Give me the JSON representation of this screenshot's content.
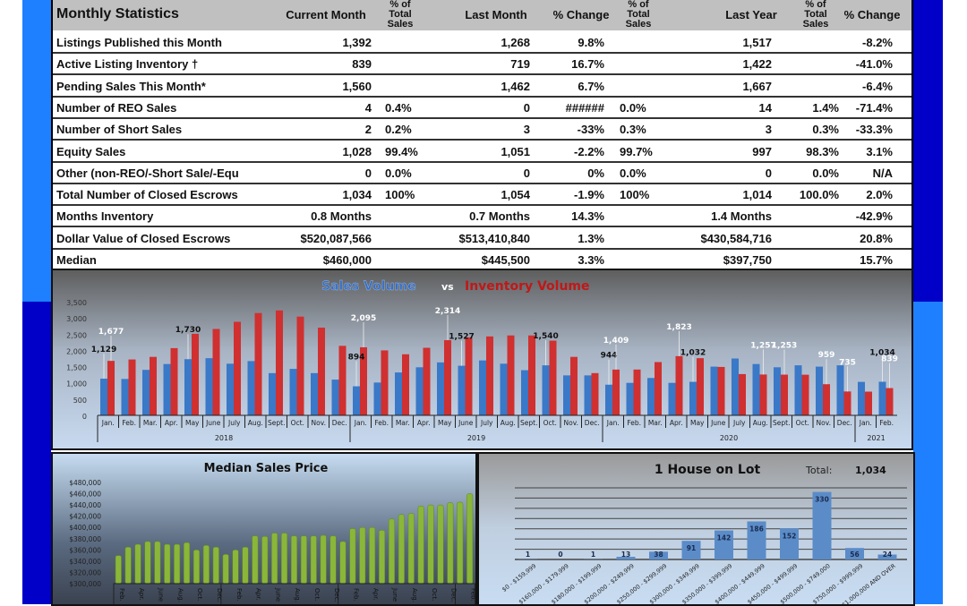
{
  "colors": {
    "frame_light": "#1e80ff",
    "frame_dark": "#0000c8",
    "sales": "#3a78c8",
    "inventory": "#d03030",
    "median_bar": "#8ab63a",
    "lot_bar": "#5b8cc8"
  },
  "table": {
    "headers": [
      "Monthly Statistics",
      "Current Month",
      "% of Total Sales",
      "Last Month",
      "% Change",
      "% of Total Sales",
      "Last Year",
      "% of Total Sales",
      "% Change"
    ],
    "rows": [
      [
        "Listings Published this Month",
        "1,392",
        "",
        "1,268",
        "9.8%",
        "",
        "1,517",
        "",
        "-8.2%"
      ],
      [
        "Active Listing Inventory †",
        "839",
        "",
        "719",
        "16.7%",
        "",
        "1,422",
        "",
        "-41.0%"
      ],
      [
        "Pending Sales This Month*",
        "1,560",
        "",
        "1,462",
        "6.7%",
        "",
        "1,667",
        "",
        "-6.4%"
      ],
      [
        "Number of REO Sales",
        "4",
        "0.4%",
        "0",
        "######",
        "0.0%",
        "14",
        "1.4%",
        "-71.4%"
      ],
      [
        "Number of Short Sales",
        "2",
        "0.2%",
        "3",
        "-33%",
        "0.3%",
        "3",
        "0.3%",
        "-33.3%"
      ],
      [
        "Equity Sales",
        "1,028",
        "99.4%",
        "1,051",
        "-2.2%",
        "99.7%",
        "997",
        "98.3%",
        "3.1%"
      ],
      [
        "Other (non-REO/-Short Sale/-Equ",
        "0",
        "0.0%",
        "0",
        "0%",
        "0.0%",
        "0",
        "0.0%",
        "N/A"
      ],
      [
        "Total Number of Closed Escrows",
        "1,034",
        "100%",
        "1,054",
        "-1.9%",
        "100%",
        "1,014",
        "100.0%",
        "2.0%"
      ],
      [
        "Months Inventory",
        "0.8 Months",
        "",
        "0.7 Months",
        "14.3%",
        "",
        "1.4 Months",
        "",
        "-42.9%"
      ],
      [
        "Dollar Value of Closed Escrows",
        "$520,087,566",
        "",
        "$513,410,840",
        "1.3%",
        "",
        "$430,584,716",
        "",
        "20.8%"
      ],
      [
        "Median",
        "$460,000",
        "",
        "$445,500",
        "3.3%",
        "",
        "$397,750",
        "",
        "15.7%"
      ]
    ]
  },
  "chart_data": [
    {
      "type": "bar",
      "title_part1": "Sales Volume",
      "title_vs": "vs",
      "title_part2": "Inventory Volume",
      "ylim": [
        0,
        3500
      ],
      "yticks": [
        "0",
        "500",
        "1,000",
        "1,500",
        "2,000",
        "2,500",
        "3,000",
        "3,500"
      ],
      "categories": [
        "Jan.",
        "Feb.",
        "Mar.",
        "Apr.",
        "May",
        "June",
        "July",
        "Aug.",
        "Sept.",
        "Oct.",
        "Nov.",
        "Dec.",
        "Jan.",
        "Feb.",
        "Mar.",
        "Apr.",
        "May",
        "June",
        "July",
        "Aug.",
        "Sept.",
        "Oct.",
        "Nov.",
        "Dec.",
        "Jan.",
        "Feb.",
        "Mar.",
        "Apr.",
        "May",
        "June",
        "July",
        "Aug.",
        "Sept.",
        "Oct.",
        "Nov.",
        "Dec.",
        "Jan.",
        "Feb."
      ],
      "years": [
        {
          "label": "2018",
          "months": 12
        },
        {
          "label": "2019",
          "months": 12
        },
        {
          "label": "2020",
          "months": 12
        },
        {
          "label": "2021",
          "months": 2
        }
      ],
      "series": [
        {
          "values": [
            1129,
            1120,
            1400,
            1580,
            1730,
            1760,
            1590,
            1670,
            1300,
            1430,
            1300,
            1100,
            894,
            1010,
            1320,
            1480,
            1630,
            1527,
            1690,
            1590,
            1390,
            1540,
            1230,
            1230,
            944,
            1000,
            1150,
            1000,
            1032,
            1500,
            1750,
            1580,
            1480,
            1540,
            1500,
            1540,
            1030,
            1034
          ]
        },
        {
          "values": [
            1677,
            1720,
            1800,
            2070,
            2510,
            2660,
            2880,
            3150,
            3230,
            3040,
            2700,
            2140,
            2095,
            2000,
            1880,
            2080,
            2314,
            2400,
            2430,
            2460,
            2460,
            2300,
            1800,
            1300,
            1409,
            1410,
            1640,
            1823,
            1760,
            1490,
            1270,
            1257,
            1253,
            1250,
            959,
            735,
            730,
            839
          ]
        }
      ],
      "data_labels": [
        {
          "text": "1,129",
          "series": 0,
          "index": 0
        },
        {
          "text": "1,677",
          "series": 1,
          "index": 0
        },
        {
          "text": "1,730",
          "series": 0,
          "index": 4
        },
        {
          "text": "894",
          "series": 0,
          "index": 12
        },
        {
          "text": "2,095",
          "series": 1,
          "index": 12
        },
        {
          "text": "2,314",
          "series": 1,
          "index": 16
        },
        {
          "text": "1,527",
          "series": 0,
          "index": 17
        },
        {
          "text": "1,540",
          "series": 0,
          "index": 21
        },
        {
          "text": "944",
          "series": 0,
          "index": 24
        },
        {
          "text": "1,409",
          "series": 1,
          "index": 24
        },
        {
          "text": "1,823",
          "series": 1,
          "index": 27
        },
        {
          "text": "1,032",
          "series": 0,
          "index": 28
        },
        {
          "text": "1,257",
          "series": 1,
          "index": 31
        },
        {
          "text": "1,253",
          "series": 1,
          "index": 32
        },
        {
          "text": "959",
          "series": 1,
          "index": 34
        },
        {
          "text": "735",
          "series": 1,
          "index": 35
        },
        {
          "text": "1,034",
          "series": 0,
          "index": 37
        },
        {
          "text": "839",
          "series": 1,
          "index": 37
        }
      ]
    },
    {
      "type": "bar",
      "title": "Median Sales Price",
      "ylim": [
        300000,
        480000
      ],
      "yticks": [
        "$300,000",
        "$320,000",
        "$340,000",
        "$360,000",
        "$380,000",
        "$400,000",
        "$420,000",
        "$440,000",
        "$460,000",
        "$480,000"
      ],
      "values": [
        350000,
        365000,
        370000,
        375000,
        375000,
        370000,
        370000,
        373000,
        360000,
        368000,
        365000,
        352000,
        360000,
        365000,
        385000,
        384000,
        390000,
        390000,
        385000,
        385000,
        385000,
        386000,
        385000,
        375000,
        398000,
        400000,
        400000,
        395000,
        415000,
        423000,
        425000,
        438000,
        440000,
        440000,
        444000,
        445000,
        460000
      ],
      "tick_labels": [
        {
          "i": 0,
          "t": "Feb."
        },
        {
          "i": 2,
          "t": "Apr."
        },
        {
          "i": 4,
          "t": "June"
        },
        {
          "i": 6,
          "t": "Aug."
        },
        {
          "i": 8,
          "t": "Oct."
        },
        {
          "i": 10,
          "t": "Dec."
        },
        {
          "i": 12,
          "t": "Feb."
        },
        {
          "i": 14,
          "t": "Apr."
        },
        {
          "i": 16,
          "t": "June"
        },
        {
          "i": 18,
          "t": "Aug."
        },
        {
          "i": 20,
          "t": "Oct."
        },
        {
          "i": 22,
          "t": "Dec."
        },
        {
          "i": 24,
          "t": "Feb."
        },
        {
          "i": 26,
          "t": "Apr."
        },
        {
          "i": 28,
          "t": "June"
        },
        {
          "i": 30,
          "t": "Aug."
        },
        {
          "i": 32,
          "t": "Oct."
        },
        {
          "i": 34,
          "t": "Dec."
        },
        {
          "i": 36,
          "t": "Feb."
        }
      ]
    },
    {
      "type": "bar",
      "title": "1 House on Lot",
      "total_label": "Total:",
      "total": "1,034",
      "ylim": [
        0,
        350
      ],
      "categories": [
        "$0 - $159,999",
        "$160,000 - $179,999",
        "$180,000 - $199,999",
        "$200,000 - $249,999",
        "$250,000 - $299,999",
        "$300,000 - $349,999",
        "$350,000 - $399,999",
        "$400,000 - $449,999",
        "$450,000 - $499,999",
        "$500,000 - $749,000",
        "$750,000 - $999,999",
        "$1,000,000 AND OVER"
      ],
      "values": [
        1,
        0,
        1,
        13,
        38,
        91,
        142,
        186,
        152,
        330,
        56,
        24
      ]
    }
  ]
}
